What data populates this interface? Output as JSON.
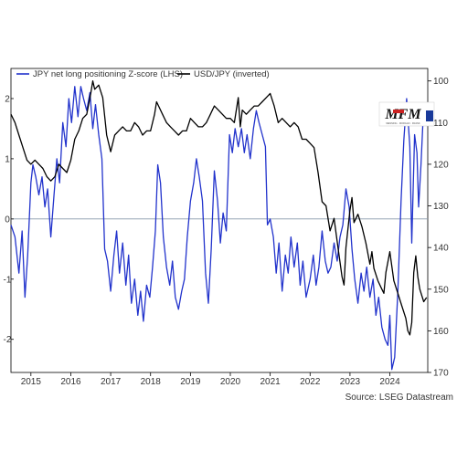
{
  "chart_data": {
    "type": "line",
    "legend_position": "top-left",
    "grid": false,
    "source": "Source: LSEG Datastream",
    "series": [
      {
        "name": "JPY net long positioning Z-score (LHS)",
        "axis": "left",
        "color": "#2233cc",
        "points": [
          [
            2014.5,
            -0.1
          ],
          [
            2014.6,
            -0.3
          ],
          [
            2014.7,
            -0.9
          ],
          [
            2014.78,
            -0.2
          ],
          [
            2014.85,
            -1.3
          ],
          [
            2014.92,
            -0.6
          ],
          [
            2015.0,
            0.6
          ],
          [
            2015.05,
            0.9
          ],
          [
            2015.12,
            0.7
          ],
          [
            2015.2,
            0.4
          ],
          [
            2015.28,
            0.7
          ],
          [
            2015.35,
            0.2
          ],
          [
            2015.42,
            0.5
          ],
          [
            2015.5,
            -0.3
          ],
          [
            2015.58,
            0.4
          ],
          [
            2015.65,
            1.0
          ],
          [
            2015.72,
            0.6
          ],
          [
            2015.8,
            1.6
          ],
          [
            2015.88,
            1.2
          ],
          [
            2015.95,
            2.0
          ],
          [
            2016.02,
            1.6
          ],
          [
            2016.1,
            2.2
          ],
          [
            2016.18,
            1.7
          ],
          [
            2016.25,
            2.2
          ],
          [
            2016.32,
            2.0
          ],
          [
            2016.4,
            1.8
          ],
          [
            2016.48,
            2.1
          ],
          [
            2016.55,
            1.5
          ],
          [
            2016.62,
            1.9
          ],
          [
            2016.7,
            1.4
          ],
          [
            2016.78,
            1.0
          ],
          [
            2016.85,
            -0.5
          ],
          [
            2016.92,
            -0.7
          ],
          [
            2017.0,
            -1.2
          ],
          [
            2017.08,
            -0.6
          ],
          [
            2017.15,
            -0.2
          ],
          [
            2017.22,
            -0.9
          ],
          [
            2017.3,
            -0.4
          ],
          [
            2017.38,
            -1.1
          ],
          [
            2017.45,
            -0.6
          ],
          [
            2017.52,
            -1.4
          ],
          [
            2017.6,
            -1.0
          ],
          [
            2017.68,
            -1.6
          ],
          [
            2017.75,
            -1.2
          ],
          [
            2017.82,
            -1.7
          ],
          [
            2017.9,
            -1.1
          ],
          [
            2017.98,
            -1.3
          ],
          [
            2018.05,
            -0.8
          ],
          [
            2018.12,
            -0.2
          ],
          [
            2018.18,
            0.9
          ],
          [
            2018.25,
            0.6
          ],
          [
            2018.32,
            -0.3
          ],
          [
            2018.4,
            -0.8
          ],
          [
            2018.48,
            -1.1
          ],
          [
            2018.55,
            -0.7
          ],
          [
            2018.62,
            -1.3
          ],
          [
            2018.7,
            -1.5
          ],
          [
            2018.78,
            -1.2
          ],
          [
            2018.85,
            -1.0
          ],
          [
            2018.92,
            -0.3
          ],
          [
            2019.0,
            0.3
          ],
          [
            2019.08,
            0.6
          ],
          [
            2019.15,
            1.0
          ],
          [
            2019.22,
            0.7
          ],
          [
            2019.3,
            0.3
          ],
          [
            2019.38,
            -0.9
          ],
          [
            2019.45,
            -1.4
          ],
          [
            2019.52,
            -0.5
          ],
          [
            2019.6,
            0.8
          ],
          [
            2019.68,
            0.3
          ],
          [
            2019.75,
            -0.4
          ],
          [
            2019.82,
            0.1
          ],
          [
            2019.9,
            -0.2
          ],
          [
            2019.98,
            1.4
          ],
          [
            2020.05,
            1.1
          ],
          [
            2020.12,
            1.5
          ],
          [
            2020.2,
            1.2
          ],
          [
            2020.28,
            1.5
          ],
          [
            2020.35,
            1.1
          ],
          [
            2020.42,
            1.4
          ],
          [
            2020.5,
            1.0
          ],
          [
            2020.58,
            1.5
          ],
          [
            2020.65,
            1.8
          ],
          [
            2020.72,
            1.6
          ],
          [
            2020.8,
            1.4
          ],
          [
            2020.88,
            1.2
          ],
          [
            2020.93,
            -0.1
          ],
          [
            2021.0,
            0.0
          ],
          [
            2021.08,
            -0.3
          ],
          [
            2021.15,
            -0.9
          ],
          [
            2021.22,
            -0.4
          ],
          [
            2021.3,
            -1.2
          ],
          [
            2021.38,
            -0.6
          ],
          [
            2021.45,
            -0.9
          ],
          [
            2021.52,
            -0.3
          ],
          [
            2021.6,
            -0.8
          ],
          [
            2021.68,
            -0.4
          ],
          [
            2021.75,
            -1.1
          ],
          [
            2021.82,
            -0.7
          ],
          [
            2021.9,
            -1.3
          ],
          [
            2022.0,
            -1.0
          ],
          [
            2022.08,
            -0.6
          ],
          [
            2022.15,
            -1.1
          ],
          [
            2022.22,
            -0.8
          ],
          [
            2022.3,
            -0.2
          ],
          [
            2022.38,
            -0.7
          ],
          [
            2022.45,
            -0.9
          ],
          [
            2022.52,
            -0.8
          ],
          [
            2022.6,
            -0.4
          ],
          [
            2022.68,
            -0.7
          ],
          [
            2022.75,
            -0.3
          ],
          [
            2022.82,
            -0.1
          ],
          [
            2022.9,
            0.5
          ],
          [
            2022.98,
            0.2
          ],
          [
            2023.05,
            -0.5
          ],
          [
            2023.12,
            -1.0
          ],
          [
            2023.2,
            -1.4
          ],
          [
            2023.28,
            -0.9
          ],
          [
            2023.35,
            -1.2
          ],
          [
            2023.42,
            -0.8
          ],
          [
            2023.5,
            -1.3
          ],
          [
            2023.58,
            -1.0
          ],
          [
            2023.65,
            -1.6
          ],
          [
            2023.72,
            -1.3
          ],
          [
            2023.8,
            -1.8
          ],
          [
            2023.88,
            -2.0
          ],
          [
            2023.95,
            -2.1
          ],
          [
            2024.0,
            -1.6
          ],
          [
            2024.05,
            -2.5
          ],
          [
            2024.12,
            -2.3
          ],
          [
            2024.2,
            -1.2
          ],
          [
            2024.28,
            0.3
          ],
          [
            2024.35,
            1.3
          ],
          [
            2024.42,
            2.0
          ],
          [
            2024.5,
            1.2
          ],
          [
            2024.55,
            -0.4
          ],
          [
            2024.62,
            1.4
          ],
          [
            2024.68,
            1.1
          ],
          [
            2024.72,
            0.2
          ],
          [
            2024.78,
            0.9
          ],
          [
            2024.85,
            1.9
          ]
        ]
      },
      {
        "name": "USD/JPY (inverted)",
        "axis": "right",
        "color": "#000000",
        "points": [
          [
            2014.5,
            108
          ],
          [
            2014.6,
            110
          ],
          [
            2014.7,
            113
          ],
          [
            2014.8,
            116
          ],
          [
            2014.9,
            119
          ],
          [
            2015.0,
            120
          ],
          [
            2015.1,
            119
          ],
          [
            2015.2,
            120
          ],
          [
            2015.3,
            121
          ],
          [
            2015.4,
            123
          ],
          [
            2015.5,
            124
          ],
          [
            2015.6,
            123
          ],
          [
            2015.7,
            120
          ],
          [
            2015.8,
            121
          ],
          [
            2015.9,
            122
          ],
          [
            2016.0,
            119
          ],
          [
            2016.1,
            114
          ],
          [
            2016.2,
            112
          ],
          [
            2016.3,
            109
          ],
          [
            2016.4,
            108
          ],
          [
            2016.5,
            103
          ],
          [
            2016.55,
            100
          ],
          [
            2016.6,
            102
          ],
          [
            2016.7,
            101
          ],
          [
            2016.8,
            104
          ],
          [
            2016.9,
            113
          ],
          [
            2017.0,
            117
          ],
          [
            2017.1,
            113
          ],
          [
            2017.2,
            112
          ],
          [
            2017.3,
            111
          ],
          [
            2017.4,
            112
          ],
          [
            2017.5,
            112
          ],
          [
            2017.6,
            110
          ],
          [
            2017.7,
            111
          ],
          [
            2017.8,
            113
          ],
          [
            2017.9,
            112
          ],
          [
            2018.0,
            112
          ],
          [
            2018.1,
            108
          ],
          [
            2018.15,
            105
          ],
          [
            2018.2,
            106
          ],
          [
            2018.3,
            108
          ],
          [
            2018.4,
            110
          ],
          [
            2018.5,
            111
          ],
          [
            2018.6,
            112
          ],
          [
            2018.7,
            113
          ],
          [
            2018.8,
            112
          ],
          [
            2018.9,
            112
          ],
          [
            2019.0,
            109
          ],
          [
            2019.1,
            110
          ],
          [
            2019.2,
            111
          ],
          [
            2019.3,
            111
          ],
          [
            2019.4,
            110
          ],
          [
            2019.5,
            108
          ],
          [
            2019.6,
            106
          ],
          [
            2019.7,
            107
          ],
          [
            2019.8,
            108
          ],
          [
            2019.9,
            109
          ],
          [
            2020.0,
            109
          ],
          [
            2020.1,
            110
          ],
          [
            2020.2,
            104
          ],
          [
            2020.25,
            111
          ],
          [
            2020.3,
            107
          ],
          [
            2020.4,
            108
          ],
          [
            2020.5,
            107
          ],
          [
            2020.6,
            106
          ],
          [
            2020.7,
            106
          ],
          [
            2020.8,
            105
          ],
          [
            2020.9,
            104
          ],
          [
            2021.0,
            103
          ],
          [
            2021.1,
            106
          ],
          [
            2021.2,
            110
          ],
          [
            2021.3,
            109
          ],
          [
            2021.4,
            110
          ],
          [
            2021.5,
            111
          ],
          [
            2021.6,
            110
          ],
          [
            2021.7,
            111
          ],
          [
            2021.8,
            114
          ],
          [
            2021.9,
            114
          ],
          [
            2022.0,
            115
          ],
          [
            2022.1,
            116
          ],
          [
            2022.2,
            122
          ],
          [
            2022.3,
            129
          ],
          [
            2022.4,
            130
          ],
          [
            2022.5,
            136
          ],
          [
            2022.6,
            133
          ],
          [
            2022.7,
            140
          ],
          [
            2022.8,
            147
          ],
          [
            2022.85,
            149
          ],
          [
            2022.9,
            140
          ],
          [
            2023.0,
            131
          ],
          [
            2023.05,
            128
          ],
          [
            2023.1,
            134
          ],
          [
            2023.2,
            132
          ],
          [
            2023.3,
            135
          ],
          [
            2023.4,
            139
          ],
          [
            2023.5,
            144
          ],
          [
            2023.55,
            141
          ],
          [
            2023.6,
            145
          ],
          [
            2023.7,
            148
          ],
          [
            2023.8,
            150
          ],
          [
            2023.85,
            151
          ],
          [
            2023.9,
            146
          ],
          [
            2024.0,
            141
          ],
          [
            2024.1,
            148
          ],
          [
            2024.2,
            151
          ],
          [
            2024.3,
            154
          ],
          [
            2024.4,
            157
          ],
          [
            2024.45,
            160
          ],
          [
            2024.5,
            161
          ],
          [
            2024.55,
            158
          ],
          [
            2024.6,
            146
          ],
          [
            2024.65,
            142
          ],
          [
            2024.7,
            147
          ],
          [
            2024.75,
            150
          ],
          [
            2024.85,
            153
          ],
          [
            2024.92,
            152
          ]
        ]
      }
    ],
    "x_axis": {
      "range": [
        2014.5,
        2024.95
      ],
      "ticks": [
        2015,
        2016,
        2017,
        2018,
        2019,
        2020,
        2021,
        2022,
        2023,
        2024
      ],
      "tick_labels": [
        "2015",
        "2016",
        "2017",
        "2018",
        "2019",
        "2020",
        "2021",
        "2022",
        "2023",
        "2024"
      ]
    },
    "y_left": {
      "range": [
        -2.55,
        2.5
      ],
      "ticks": [
        2,
        1,
        0,
        -1,
        -2
      ],
      "tick_labels": [
        "2",
        "1",
        "0",
        "-1",
        "-2"
      ],
      "reference_line": 0
    },
    "y_right": {
      "inverted": true,
      "range": [
        97,
        170
      ],
      "ticks": [
        100,
        110,
        120,
        130,
        140,
        150,
        160,
        170
      ],
      "tick_labels": [
        "100",
        "110",
        "120",
        "130",
        "140",
        "150",
        "160",
        "170"
      ]
    },
    "logo": {
      "text": "MFM",
      "subtext": "MENNING · MORGAN · FRANK",
      "colors": {
        "main": "#111111",
        "accent": "#cc2222",
        "badge": "#1a3a9a"
      }
    }
  }
}
